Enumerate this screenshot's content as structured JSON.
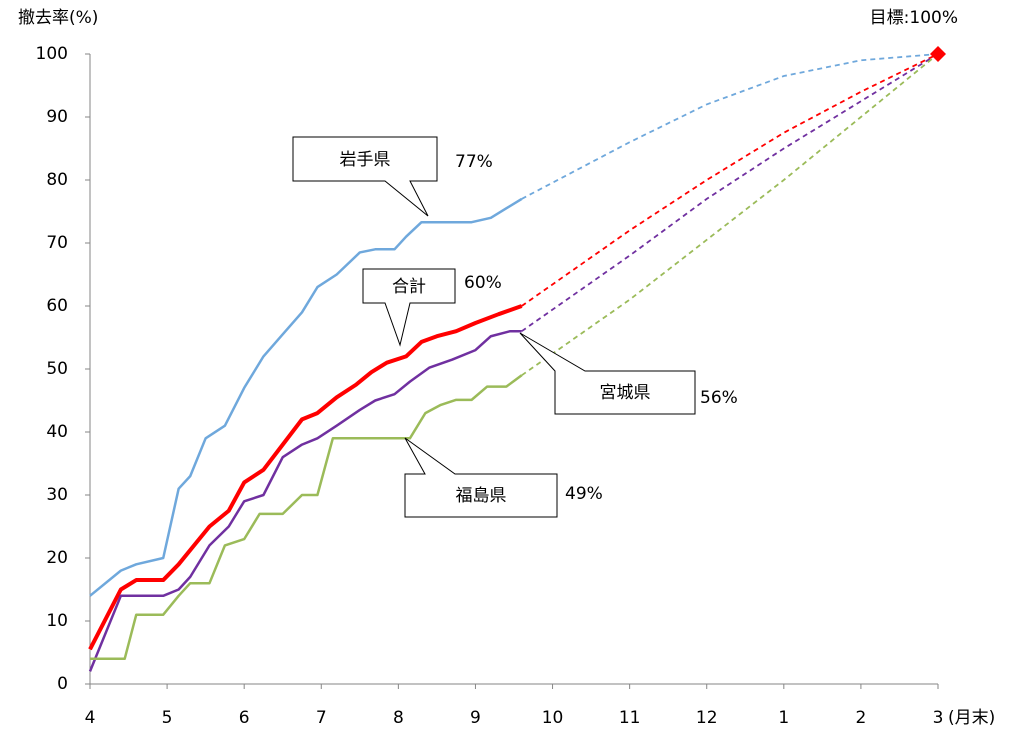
{
  "chart_data": {
    "type": "line",
    "y_label": "撤去率(%)",
    "x_unit_label": "(月末)",
    "xlim": [
      0,
      11
    ],
    "ylim": [
      0,
      100
    ],
    "xticks": [
      {
        "value": 0,
        "label": "4"
      },
      {
        "value": 1,
        "label": "5"
      },
      {
        "value": 2,
        "label": "6"
      },
      {
        "value": 3,
        "label": "7"
      },
      {
        "value": 4,
        "label": "8"
      },
      {
        "value": 5,
        "label": "9"
      },
      {
        "value": 6,
        "label": "10"
      },
      {
        "value": 7,
        "label": "11"
      },
      {
        "value": 8,
        "label": "12"
      },
      {
        "value": 9,
        "label": "1"
      },
      {
        "value": 10,
        "label": "2"
      },
      {
        "value": 11,
        "label": "3"
      }
    ],
    "yticks": [
      0,
      10,
      20,
      30,
      40,
      50,
      60,
      70,
      80,
      90,
      100
    ],
    "target": {
      "x": 11,
      "value": 100,
      "label": "目標:100%",
      "color": "#ff0000"
    },
    "series": [
      {
        "name": "岩手県",
        "color": "#6fa8dc",
        "width": 2.5,
        "x": [
          0,
          0.4,
          0.6,
          0.95,
          1.15,
          1.3,
          1.5,
          1.75,
          2.0,
          2.25,
          2.5,
          2.75,
          2.95,
          3.2,
          3.5,
          3.7,
          3.95,
          4.1,
          4.3,
          4.6,
          4.95,
          5.2,
          5.4,
          5.6
        ],
        "values": [
          14,
          18,
          19,
          20,
          31,
          33,
          39,
          41,
          47,
          52,
          55.5,
          59,
          63,
          65,
          68.5,
          69,
          69,
          71,
          73.3,
          73.3,
          73.3,
          74,
          75.5,
          77
        ],
        "value_labels": [
          null,
          null,
          null,
          null,
          null,
          null,
          null,
          null,
          null,
          null,
          null,
          null,
          null,
          null,
          null,
          null,
          null,
          null,
          null,
          null,
          null,
          null,
          null,
          "77%"
        ],
        "projection": {
          "x": [
            5.6,
            7,
            8,
            9,
            10,
            11
          ],
          "values": [
            77,
            86,
            92,
            96.5,
            99,
            100
          ]
        }
      },
      {
        "name": "合計",
        "color": "#ff0000",
        "width": 4,
        "x": [
          0,
          0.4,
          0.6,
          0.95,
          1.15,
          1.35,
          1.55,
          1.8,
          2.0,
          2.25,
          2.5,
          2.75,
          2.95,
          3.2,
          3.45,
          3.65,
          3.85,
          4.1,
          4.3,
          4.5,
          4.75,
          5.0,
          5.3,
          5.6
        ],
        "values": [
          5.5,
          15,
          16.5,
          16.5,
          19,
          22,
          25,
          27.5,
          32,
          34,
          38,
          42,
          43,
          45.5,
          47.5,
          49.5,
          51,
          52,
          54.3,
          55.2,
          56,
          57.3,
          58.7,
          60
        ],
        "value_labels": [
          null,
          null,
          null,
          null,
          null,
          null,
          null,
          null,
          null,
          null,
          null,
          null,
          null,
          null,
          null,
          null,
          null,
          null,
          null,
          null,
          null,
          null,
          null,
          "60%"
        ],
        "projection": {
          "x": [
            5.6,
            7,
            8,
            9,
            10,
            11
          ],
          "values": [
            60,
            72,
            80,
            87.5,
            94,
            100
          ]
        }
      },
      {
        "name": "宮城県",
        "color": "#7030a0",
        "width": 2.5,
        "x": [
          0,
          0.4,
          0.95,
          1.15,
          1.3,
          1.55,
          1.8,
          2.0,
          2.25,
          2.5,
          2.75,
          2.95,
          3.2,
          3.5,
          3.7,
          3.95,
          4.15,
          4.4,
          4.7,
          5.0,
          5.2,
          5.45,
          5.6
        ],
        "values": [
          2,
          14,
          14,
          15,
          17,
          22,
          25,
          29,
          30,
          36,
          38,
          39,
          41,
          43.5,
          45,
          46,
          48,
          50.2,
          51.5,
          53,
          55.2,
          56,
          56
        ],
        "value_labels": [
          null,
          null,
          null,
          null,
          null,
          null,
          null,
          null,
          null,
          null,
          null,
          null,
          null,
          null,
          null,
          null,
          null,
          null,
          null,
          null,
          null,
          null,
          "56%"
        ],
        "projection": {
          "x": [
            5.6,
            7,
            8,
            9,
            10,
            11
          ],
          "values": [
            56,
            68,
            77,
            85,
            92.5,
            100
          ]
        }
      },
      {
        "name": "福島県",
        "color": "#9bbb59",
        "width": 2.5,
        "x": [
          0,
          0.45,
          0.6,
          0.95,
          1.15,
          1.3,
          1.55,
          1.75,
          2.0,
          2.2,
          2.5,
          2.75,
          2.95,
          3.15,
          3.5,
          4.15,
          4.35,
          4.55,
          4.75,
          4.95,
          5.15,
          5.4,
          5.6
        ],
        "values": [
          4,
          4,
          11,
          11,
          14,
          16,
          16,
          22,
          23,
          27,
          27,
          30,
          30,
          39,
          39,
          39,
          43,
          44.3,
          45.1,
          45.1,
          47.2,
          47.2,
          49
        ],
        "value_labels": [
          null,
          null,
          null,
          null,
          null,
          null,
          null,
          null,
          null,
          null,
          null,
          null,
          null,
          null,
          null,
          null,
          null,
          null,
          null,
          null,
          null,
          null,
          "49%"
        ],
        "projection": {
          "x": [
            5.6,
            7,
            8,
            9,
            10,
            11
          ],
          "values": [
            49,
            61,
            70.5,
            80,
            90,
            100
          ]
        }
      }
    ]
  }
}
